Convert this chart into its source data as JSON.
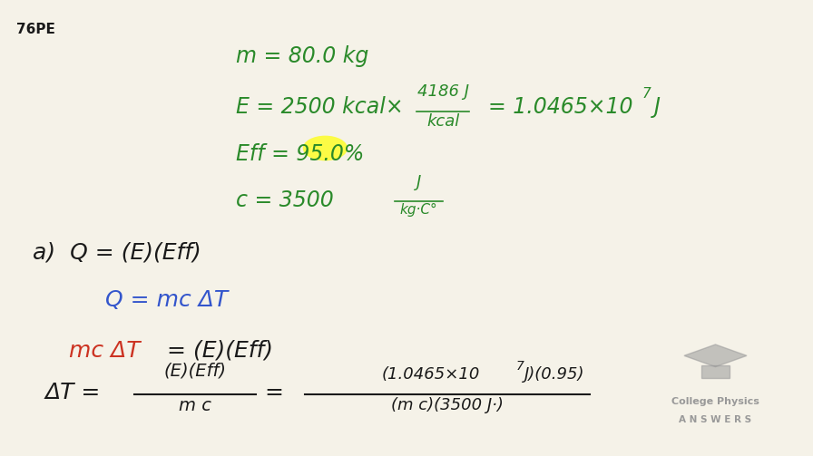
{
  "bg_color": "#f5f2e8",
  "title_label": "76PE",
  "title_color": "#222222",
  "title_fontsize": 11,
  "green_color": "#2a8a2a",
  "blue_color": "#3355cc",
  "red_color": "#cc3322",
  "black_color": "#1a1a1a",
  "highlight_color": "#ffff00",
  "logo_color": "#999999",
  "line1": "m = 80.0 kg",
  "line2_a": "E = 2500 kcal×",
  "line2_frac_num": "4186 J",
  "line2_frac_den": "kcal",
  "line2_b": "= 1.0465×10",
  "line2_exp": "7",
  "line2_c": "J",
  "line3": "Eff = 95.0%",
  "line4_a": "c = 3500",
  "line4_frac_num": "J",
  "line4_frac_den": "kg·C°",
  "line_a_label": "a)  Q = (E)(Eff)",
  "line_b": "Q = mc ΔT",
  "line_c_red": "mc ΔT",
  "line_c_black": "= (E)(Eff)",
  "line_d_delta": "ΔT =",
  "line_d_lhs_num": "(E)(Eff)",
  "line_d_lhs_den": "m c",
  "line_d_eq": "=",
  "line_d_rhs_num_a": "(1.0465×10",
  "line_d_rhs_num_exp": "7",
  "line_d_rhs_num_b": "J)(0.95)",
  "line_d_rhs_den": "(m c)(3500 J·)",
  "logo_line1": "College Physics",
  "logo_line2": "A N S W E R S"
}
